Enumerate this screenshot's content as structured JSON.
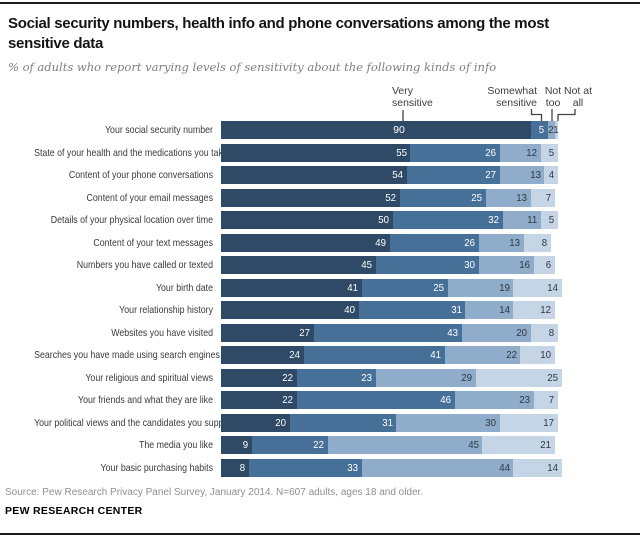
{
  "header": {
    "title": "Social security numbers, health info and phone conversations among the most sensitive data",
    "subtitle": "% of adults who report varying levels of sensitivity about the following kinds of info"
  },
  "legend": {
    "very": "Very sensitive",
    "somewhat": "Somewhat sensitive",
    "not_too": "Not too",
    "not_at_all": "Not at all"
  },
  "chart_data": {
    "type": "bar",
    "orientation": "horizontal",
    "stacked": true,
    "xlim": [
      0,
      100
    ],
    "grid": false,
    "legend_position": "top-annotated-with-connector-lines",
    "categories": [
      "Your social security number",
      "State of your health and the medications you take",
      "Content of your phone conversations",
      "Content of your email messages",
      "Details of your physical location over time",
      "Content of your text messages",
      "Numbers you have called or texted",
      "Your birth date",
      "Your relationship history",
      "Websites you have visited",
      "Searches you have made using search engines",
      "Your religious and spiritual views",
      "Your friends and what they are like",
      "Your political views and the candidates you support",
      "The media you like",
      "Your basic purchasing habits"
    ],
    "series": [
      {
        "name": "Very sensitive",
        "color": "#2e4a66",
        "text_color": "#ffffff",
        "values": [
          90,
          55,
          54,
          52,
          50,
          49,
          45,
          41,
          40,
          27,
          24,
          22,
          22,
          20,
          9,
          8
        ]
      },
      {
        "name": "Somewhat sensitive",
        "color": "#477099",
        "text_color": "#ffffff",
        "values": [
          5,
          26,
          27,
          25,
          32,
          26,
          30,
          25,
          31,
          43,
          41,
          23,
          46,
          31,
          22,
          33
        ]
      },
      {
        "name": "Not too",
        "color": "#8fadcb",
        "text_color": "#2d3640",
        "values": [
          2,
          12,
          13,
          13,
          11,
          13,
          16,
          19,
          14,
          20,
          22,
          29,
          23,
          30,
          45,
          44
        ]
      },
      {
        "name": "Not at all",
        "color": "#c5d5e5",
        "text_color": "#2d3640",
        "values": [
          1,
          5,
          4,
          7,
          5,
          8,
          6,
          14,
          12,
          8,
          10,
          25,
          7,
          17,
          21,
          14
        ]
      }
    ]
  },
  "footer": {
    "source": "Source: Pew Research Privacy Panel Survey, January 2014. N=607 adults, ages 18 and older.",
    "brand": "PEW RESEARCH CENTER"
  }
}
